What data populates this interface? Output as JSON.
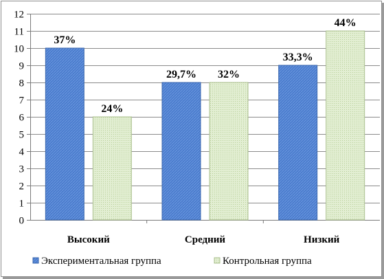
{
  "chart_data": {
    "type": "bar",
    "title": "",
    "xlabel": "",
    "ylabel": "",
    "ylim": [
      0,
      12
    ],
    "ytick_step": 1,
    "grid": true,
    "legend_position": "bottom",
    "categories": [
      "Высокий",
      "Средний",
      "Низкий"
    ],
    "series": [
      {
        "name": "Экспериментальная группа",
        "values": [
          10,
          8,
          9
        ],
        "labels": [
          "37%",
          "29,7%",
          "33,3%"
        ],
        "color": "#4f7fd0",
        "pattern": "diagonal-stripes"
      },
      {
        "name": "Контрольная группа",
        "values": [
          6,
          8,
          11
        ],
        "labels": [
          "24%",
          "32%",
          "44%"
        ],
        "color": "#d6e8bf",
        "pattern": "dots"
      }
    ]
  }
}
